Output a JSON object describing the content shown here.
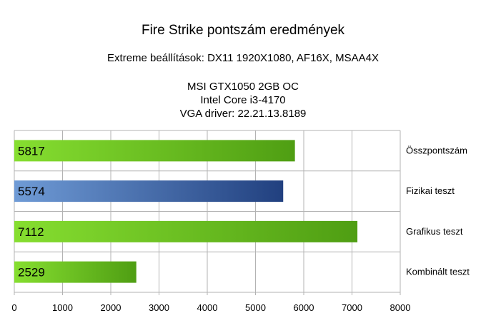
{
  "chart_data": {
    "type": "bar",
    "orientation": "horizontal",
    "title": "Fire Strike pontszám eredmények",
    "subtitle": "Extreme beállítások: DX11 1920X1080, AF16X, MSAA4X",
    "info_lines": [
      "MSI GTX1050 2GB OC",
      "Intel Core i3-4170",
      "VGA driver: 22.21.13.8189"
    ],
    "categories": [
      "Összpontszám",
      "Fizikai teszt",
      "Grafikus teszt",
      "Kombinált teszt"
    ],
    "values": [
      5817,
      5574,
      7112,
      2529
    ],
    "value_labels": [
      "5817",
      "5574",
      "7112",
      "2529"
    ],
    "bar_colors": [
      "#7ccf2c",
      "#3f6fb4",
      "#7ccf2c",
      "#6cbf22"
    ],
    "xlim": [
      0,
      8000
    ],
    "x_ticks": [
      0,
      1000,
      2000,
      3000,
      4000,
      5000,
      6000,
      7000,
      8000
    ],
    "x_tick_labels": [
      "0",
      "1000",
      "2000",
      "3000",
      "4000",
      "5000",
      "6000",
      "7000",
      "8000"
    ],
    "grid": true,
    "category_label_position": "right"
  }
}
